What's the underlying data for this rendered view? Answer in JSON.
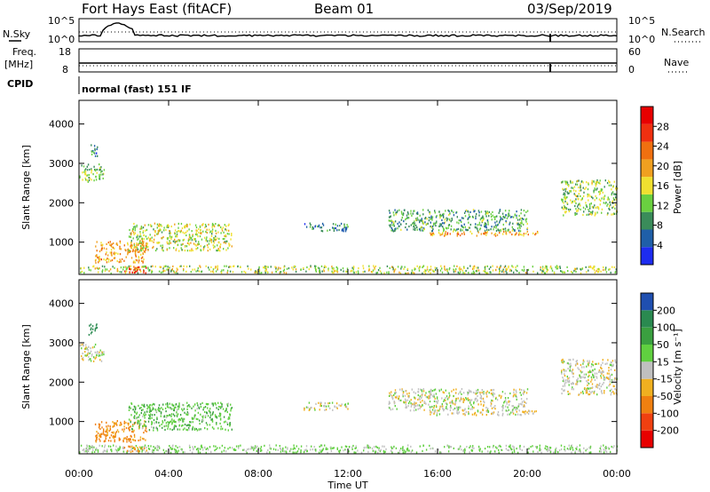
{
  "header": {
    "title": "Fort Hays East (fitACF)",
    "beam": "Beam 01",
    "date": "03/Sep/2019"
  },
  "top_panels": {
    "nsky_label": "N.Sky",
    "nsearch_label": "N.Search",
    "freq_label": "Freq.",
    "freq_unit": "[MHz]",
    "nave_label": "Nave",
    "cpid_label": "CPID",
    "cpid_value": "normal (fast) 151 IF",
    "noise_left_ticks": [
      "10^5",
      "10^0"
    ],
    "noise_right_ticks": [
      "10^5",
      "10^0"
    ],
    "freq_left_ticks": [
      "18",
      "8"
    ],
    "nave_right_ticks": [
      "60",
      "0"
    ]
  },
  "colors": {
    "power_scale": [
      "#1d2cf0",
      "#1f5fa8",
      "#3a8c5a",
      "#6ad040",
      "#f0e030",
      "#f0a020",
      "#f07010",
      "#f03010",
      "#e80000"
    ],
    "velocity_scale": [
      "#e80000",
      "#f04010",
      "#f08010",
      "#f0b020",
      "#c8c8c8",
      "#60d040",
      "#3aa040",
      "#2a8a50",
      "#1f4fb0"
    ],
    "velocity_ground": "#c0c0c0"
  },
  "chart_data": [
    {
      "type": "heatmap",
      "name": "power",
      "ylabel": "Slant Range [km]",
      "y_ticks": [
        1000,
        2000,
        3000,
        4000
      ],
      "ylim": [
        180,
        4600
      ],
      "xlim": [
        0,
        24
      ],
      "colorbar_label": "Power [dB]",
      "colorbar_ticks": [
        4,
        8,
        12,
        16,
        20,
        24,
        28
      ],
      "colorbar_range": [
        0,
        32
      ],
      "scatter_regions": [
        {
          "t0": 0.0,
          "t1": 1.1,
          "r0": 2550,
          "r1": 3000,
          "value": 12
        },
        {
          "t0": 0.4,
          "t1": 0.8,
          "r0": 3200,
          "r1": 3500,
          "value": 8
        },
        {
          "t0": 0.7,
          "t1": 3.0,
          "r0": 500,
          "r1": 1050,
          "value": 20
        },
        {
          "t0": 2.2,
          "t1": 6.8,
          "r0": 800,
          "r1": 1500,
          "value": 15
        },
        {
          "t0": 0.0,
          "t1": 24.0,
          "r0": 230,
          "r1": 420,
          "value": 14
        },
        {
          "t0": 2.0,
          "t1": 3.0,
          "r0": 230,
          "r1": 400,
          "value": 26
        },
        {
          "t0": 13.8,
          "t1": 20.0,
          "r0": 1300,
          "r1": 1850,
          "value": 10
        },
        {
          "t0": 15.6,
          "t1": 20.5,
          "r0": 1180,
          "r1": 1300,
          "value": 20
        },
        {
          "t0": 21.5,
          "t1": 24.0,
          "r0": 1700,
          "r1": 2600,
          "value": 13
        },
        {
          "t0": 10.0,
          "t1": 12.0,
          "r0": 1300,
          "r1": 1500,
          "value": 8
        }
      ]
    },
    {
      "type": "heatmap",
      "name": "velocity",
      "xlabel": "Time UT",
      "ylabel": "Slant Range [km]",
      "x_ticks": [
        "00:00",
        "04:00",
        "08:00",
        "12:00",
        "16:00",
        "20:00",
        "00:00"
      ],
      "y_ticks": [
        1000,
        2000,
        3000,
        4000
      ],
      "ylim": [
        180,
        4600
      ],
      "xlim": [
        0,
        24
      ],
      "colorbar_label": "Velocity [m s⁻¹]",
      "colorbar_ticks": [
        -200,
        -100,
        -50,
        -15,
        15,
        50,
        100,
        200
      ],
      "scatter_regions": [
        {
          "t0": 0.0,
          "t1": 1.1,
          "r0": 2550,
          "r1": 3000,
          "value": 0
        },
        {
          "t0": 0.4,
          "t1": 0.8,
          "r0": 3200,
          "r1": 3500,
          "value": 150
        },
        {
          "t0": 0.7,
          "t1": 3.0,
          "r0": 500,
          "r1": 1050,
          "value": -60
        },
        {
          "t0": 2.2,
          "t1": 6.8,
          "r0": 800,
          "r1": 1500,
          "value": 40
        },
        {
          "t0": 0.0,
          "t1": 24.0,
          "r0": 230,
          "r1": 420,
          "value": 20
        },
        {
          "t0": 2.0,
          "t1": 3.0,
          "r0": 230,
          "r1": 400,
          "value": -60
        },
        {
          "t0": 13.8,
          "t1": 20.0,
          "r0": 1300,
          "r1": 1850,
          "value": 0
        },
        {
          "t0": 15.6,
          "t1": 20.5,
          "r0": 1180,
          "r1": 1300,
          "value": 0
        },
        {
          "t0": 21.5,
          "t1": 24.0,
          "r0": 1700,
          "r1": 2600,
          "value": 0
        },
        {
          "t0": 10.0,
          "t1": 12.0,
          "r0": 1300,
          "r1": 1500,
          "value": 0
        }
      ]
    }
  ]
}
